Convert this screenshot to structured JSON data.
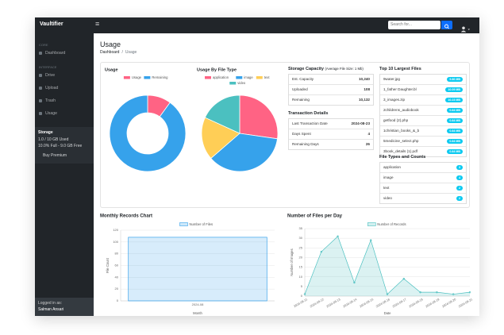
{
  "navbar": {
    "brand": "Vaultifier",
    "search_placeholder": "Search for..."
  },
  "sidebar": {
    "sections": [
      {
        "heading": "CORE",
        "items": [
          "Dashboard"
        ]
      },
      {
        "heading": "INTERFACE",
        "items": [
          "Drive",
          "Upload",
          "Trash",
          "Usage"
        ]
      }
    ],
    "storage": {
      "title": "Storage",
      "used": "1.0 / 10 GB Used",
      "free": "10.0% Full - 9.0 GB Free",
      "button": "Buy Premium"
    },
    "footer": {
      "label": "Logged in as:",
      "user": "Salman Ansari"
    }
  },
  "page": {
    "title": "Usage",
    "breadcrumb": [
      "Dashboard",
      "Usage"
    ]
  },
  "usage_chart": {
    "type": "doughnut",
    "title": "Usage",
    "categories": [
      "Usage",
      "Remaining"
    ],
    "values": [
      10,
      90
    ],
    "colors": [
      "#ff6384",
      "#36a2eb"
    ]
  },
  "file_type_chart": {
    "type": "pie",
    "title": "Usage By File Type",
    "categories": [
      "application",
      "image",
      "text",
      "video"
    ],
    "values": [
      3,
      4,
      2,
      2
    ],
    "colors": [
      "#ff6384",
      "#36a2eb",
      "#ffce56",
      "#4bc0c0"
    ]
  },
  "storage_capacity": {
    "title": "Storage Capacity",
    "note": "(Average File Size: 1 Mb)",
    "rows": [
      [
        "Est. Capacity",
        "10,240"
      ],
      [
        "Uploaded",
        "108"
      ],
      [
        "Remaining",
        "10,132"
      ]
    ]
  },
  "transaction_details": {
    "title": "Transaction Details",
    "rows": [
      [
        "Last Transaction Date",
        "2024-08-23"
      ],
      [
        "Days Spent",
        "4"
      ],
      [
        "Remaining Days",
        "26"
      ]
    ]
  },
  "top_files": {
    "title": "Top 10 Largest Files",
    "files": [
      {
        "name": "9water.jpg",
        "size": "9.86 MB"
      },
      {
        "name": "1_father Daughter.bl",
        "size": "10.09 MB"
      },
      {
        "name": "3_images.zip",
        "size": "10.23 MB"
      },
      {
        "name": "2childrens_audiobook",
        "size": "0.84 MB"
      },
      {
        "name": "getfood (2).php",
        "size": "0.84 MB"
      },
      {
        "name": "1christian_books_&_b",
        "size": "0.84 MB"
      },
      {
        "name": "5medicine_select.php",
        "size": "0.84 MB"
      },
      {
        "name": "3book_details (1).pdf",
        "size": "0.84 MB"
      }
    ]
  },
  "file_types": {
    "title": "File Types and Counts",
    "rows": [
      {
        "name": "application",
        "count": 3
      },
      {
        "name": "image",
        "count": 4
      },
      {
        "name": "text",
        "count": 2
      },
      {
        "name": "video",
        "count": 2
      }
    ]
  },
  "monthly_chart": {
    "type": "bar",
    "title": "Monthly Records Chart",
    "categories": [
      "2024-08"
    ],
    "series": [
      {
        "name": "Number of Files",
        "color": "#36a2eb",
        "values": [
          108
        ]
      }
    ],
    "xlabel": "Month",
    "ylabel": "File Count",
    "ylim": [
      0,
      120
    ],
    "yticks": [
      0,
      20,
      40,
      60,
      80,
      100,
      120
    ],
    "grid": true
  },
  "daily_chart": {
    "type": "line",
    "title": "Number of Files per Day",
    "categories": [
      "2024-08-11",
      "2024-08-12",
      "2024-08-13",
      "2024-08-14",
      "2024-08-15",
      "2024-08-16",
      "2024-08-17",
      "2024-08-18",
      "2024-08-19",
      "2024-08-20",
      "2024-08-21"
    ],
    "series": [
      {
        "name": "Number of Records",
        "color": "#4bc0c0",
        "values": [
          1,
          23,
          31,
          7,
          29,
          1,
          9,
          2,
          2,
          1,
          2
        ]
      }
    ],
    "xlabel": "Date",
    "ylabel": "Number of Images",
    "ylim": [
      0,
      35
    ],
    "yticks": [
      0,
      5,
      10,
      15,
      20,
      25,
      30,
      35
    ],
    "grid": true
  }
}
